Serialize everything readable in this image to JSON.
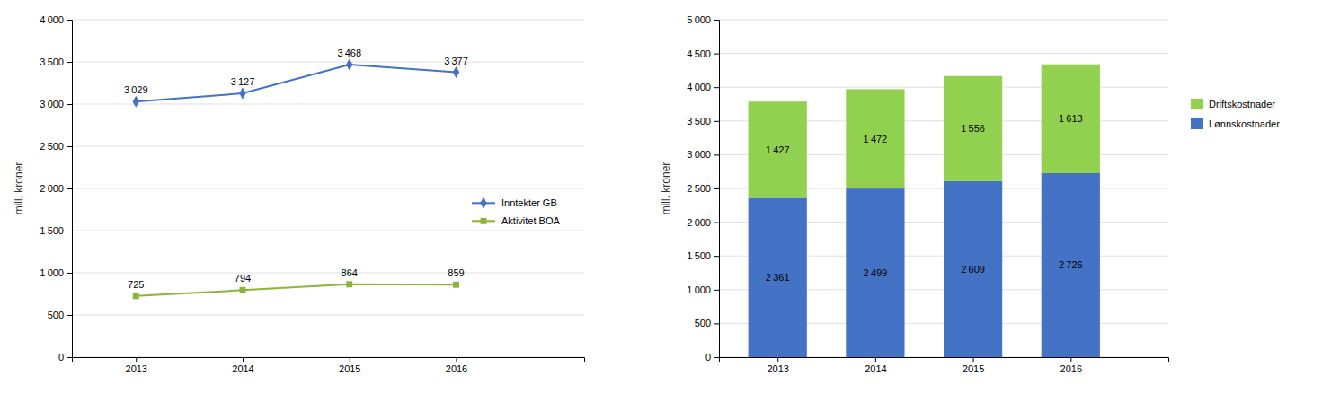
{
  "chart_data": [
    {
      "type": "line",
      "x": [
        2013,
        2014,
        2015,
        2016
      ],
      "xlim": [
        2012.4,
        2017.2
      ],
      "xticks": [
        2013,
        2014,
        2015,
        2016
      ],
      "ylabel": "mill. kroner",
      "ylim": [
        0,
        4000
      ],
      "yticks": [
        0,
        500,
        {
          "value": 1000,
          "label": "1 000"
        },
        {
          "value": 1500,
          "label": "1 500"
        },
        {
          "value": 2000,
          "label": "2 000"
        },
        {
          "value": 2500,
          "label": "2 500"
        },
        {
          "value": 3000,
          "label": "3 000"
        },
        {
          "value": 3500,
          "label": "3 500"
        },
        {
          "value": 4000,
          "label": "4 000"
        }
      ],
      "grid": true,
      "legend": "right",
      "data_labels": true,
      "series": [
        {
          "name": "Inntekter GB",
          "color": "#4472C4",
          "marker": "diamond",
          "values": [
            3029,
            3127,
            3468,
            3377
          ],
          "value_labels": [
            "3 029",
            "3 127",
            "3 468",
            "3 377"
          ]
        },
        {
          "name": "Aktivitet BOA",
          "color": "#8DB43A",
          "marker": "square",
          "values": [
            725,
            794,
            864,
            859
          ],
          "value_labels": [
            "725",
            "794",
            "864",
            "859"
          ]
        }
      ]
    },
    {
      "type": "bar",
      "stacked": true,
      "x": [
        2013,
        2014,
        2015,
        2016
      ],
      "xlim": [
        2012.4,
        2017.0
      ],
      "xticks": [
        2013,
        2014,
        2015,
        2016
      ],
      "ylabel": "mill. kroner",
      "ylim": [
        0,
        5000
      ],
      "yticks": [
        0,
        500,
        {
          "value": 1000,
          "label": "1 000"
        },
        {
          "value": 1500,
          "label": "1 500"
        },
        {
          "value": 2000,
          "label": "2 000"
        },
        {
          "value": 2500,
          "label": "2 500"
        },
        {
          "value": 3000,
          "label": "3 000"
        },
        {
          "value": 3500,
          "label": "3 500"
        },
        {
          "value": 4000,
          "label": "4 000"
        },
        {
          "value": 4500,
          "label": "4 500"
        },
        {
          "value": 5000,
          "label": "5 000"
        }
      ],
      "grid": true,
      "legend": "right",
      "data_labels": true,
      "series": [
        {
          "name": "Lønnskostnader",
          "color": "#4472C4",
          "values": [
            2361,
            2499,
            2609,
            2726
          ],
          "value_labels": [
            "2 361",
            "2 499",
            "2 609",
            "2 726"
          ]
        },
        {
          "name": "Driftskostnader",
          "color": "#92D050",
          "values": [
            1427,
            1472,
            1556,
            1613
          ],
          "value_labels": [
            "1 427",
            "1 472",
            "1 556",
            "1 613"
          ]
        }
      ]
    }
  ]
}
